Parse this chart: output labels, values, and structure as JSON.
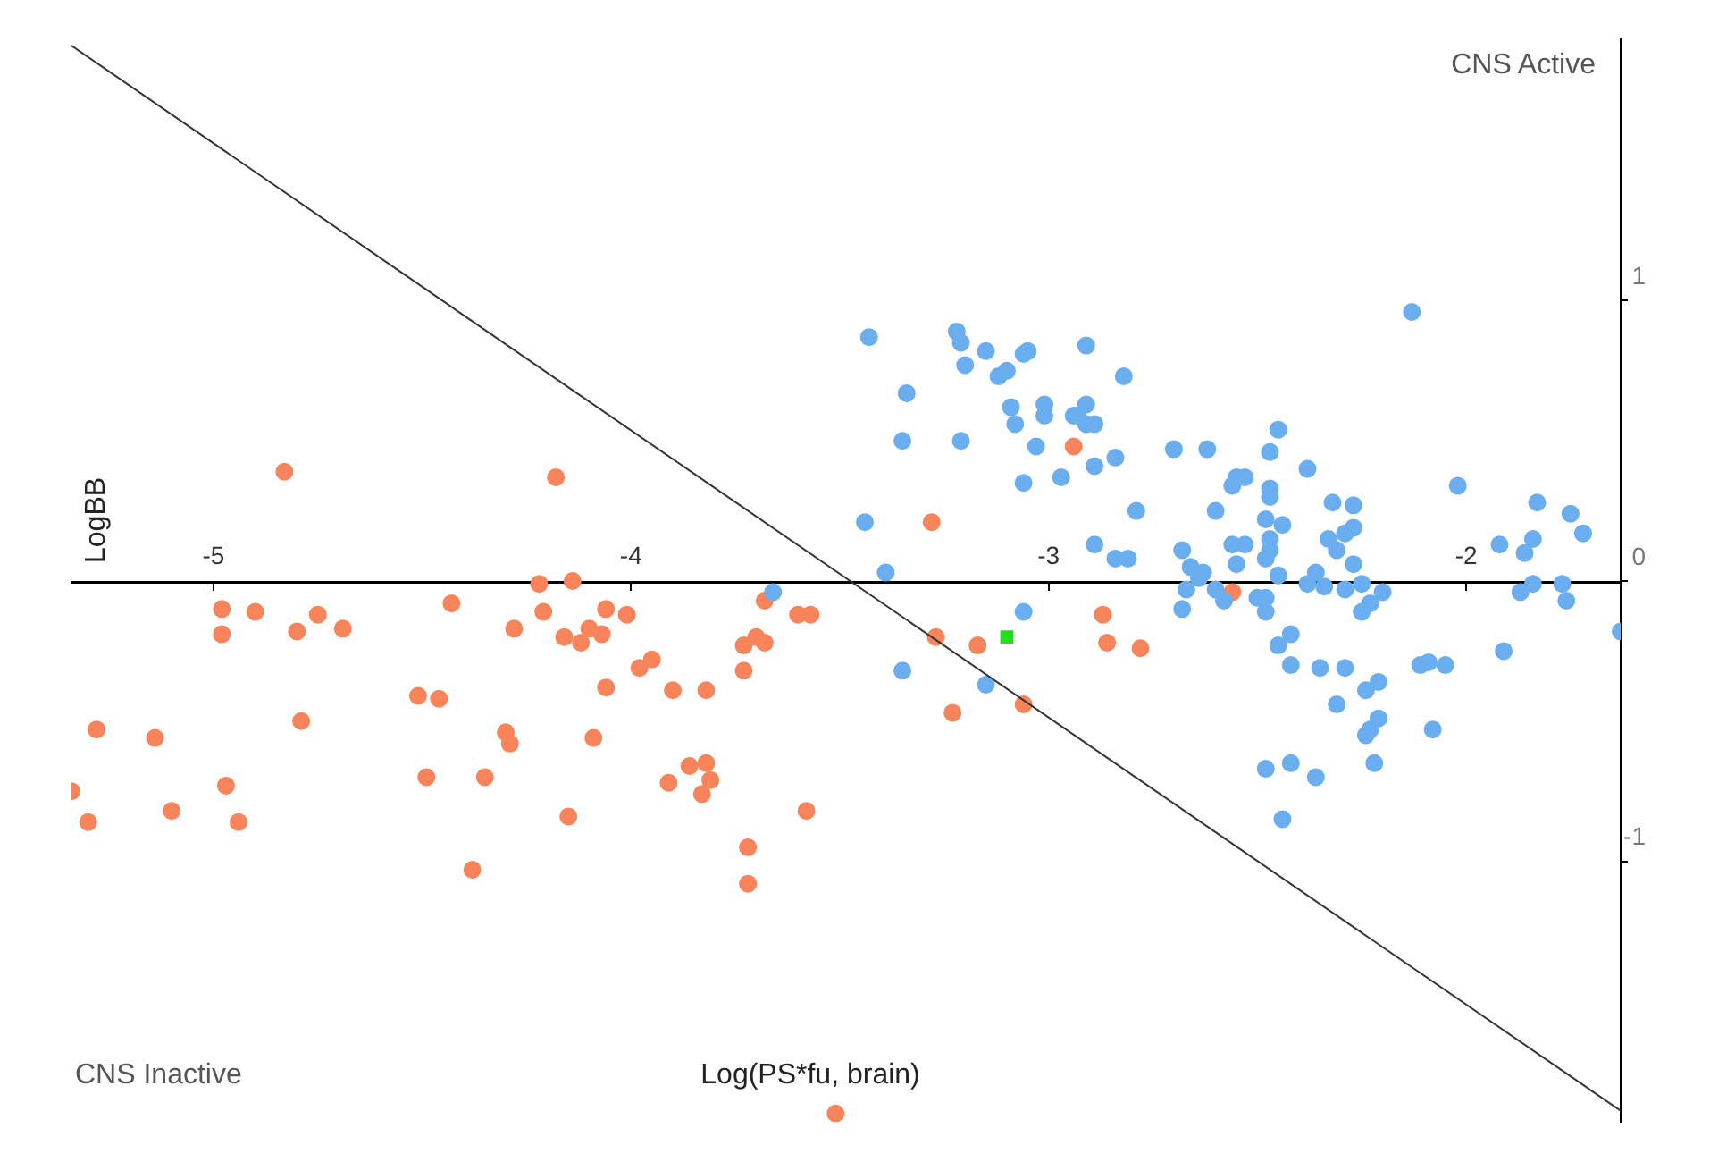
{
  "chart_data": {
    "type": "scatter",
    "xlabel": "Log(PS*fu, brain)",
    "ylabel": "LogBB",
    "annotations": [
      "CNS Active",
      "CNS Inactive"
    ],
    "xlim": [
      -5.34,
      -1.63
    ],
    "ylim": [
      -1.93,
      1.93
    ],
    "xticks": [
      -5,
      -4,
      -3,
      -2
    ],
    "yticks": [
      -1,
      0,
      1
    ],
    "legend": false,
    "marker": "circle",
    "series": [
      {
        "color": "#6aaef0",
        "x": [
          -3.43,
          -3.22,
          -3.21,
          -3.15,
          -3.2,
          -3.12,
          -3.1,
          -3.06,
          -3.05,
          -2.91,
          -2.82,
          -3.34,
          -3.35,
          -3.21,
          -3.09,
          -3.08,
          -3.01,
          -3.01,
          -2.94,
          -2.93,
          -2.91,
          -2.91,
          -2.89,
          -3.03,
          -3.06,
          -2.97,
          -2.89,
          -2.84,
          -2.7,
          -2.62,
          -2.45,
          -2.47,
          -2.38,
          -2.79,
          -2.6,
          -2.56,
          -2.55,
          -2.53,
          -2.47,
          -2.47,
          -2.48,
          -2.44,
          -2.47,
          -2.47,
          -2.48,
          -2.02,
          -2.13,
          -1.83,
          -1.75,
          -1.72,
          -1.92,
          -1.84,
          -1.86,
          -1.84,
          -1.77,
          -1.87,
          -1.76,
          -2.32,
          -2.27,
          -2.27,
          -2.29,
          -2.33,
          -2.31,
          -2.27,
          -2.25,
          -2.2,
          -2.29,
          -2.34,
          -2.36,
          -2.38,
          -2.45,
          -2.55,
          -2.56,
          -2.53,
          -2.68,
          -2.89,
          -2.84,
          -2.81,
          -2.66,
          -2.63,
          -2.64,
          -2.67,
          -2.6,
          -2.58,
          -2.68,
          -2.5,
          -2.48,
          -2.48,
          -2.25,
          -2.23,
          -3.39,
          -3.44,
          -3.66,
          -3.06,
          -3.35,
          -3.15,
          -2.42,
          -2.45,
          -2.42,
          -2.35,
          -2.29,
          -2.21,
          -2.24,
          -2.31,
          -2.21,
          -2.23,
          -2.24,
          -2.22,
          -2.48,
          -2.42,
          -2.36,
          -2.44,
          -2.11,
          -2.09,
          -2.05,
          -1.91,
          -2.08,
          -1.63
        ],
        "values": [
          0.87,
          0.89,
          0.85,
          0.82,
          0.77,
          0.73,
          0.75,
          0.81,
          0.82,
          0.84,
          0.73,
          0.67,
          0.5,
          0.5,
          0.62,
          0.56,
          0.63,
          0.59,
          0.59,
          0.59,
          0.63,
          0.56,
          0.56,
          0.48,
          0.35,
          0.37,
          0.41,
          0.44,
          0.47,
          0.47,
          0.54,
          0.46,
          0.4,
          0.25,
          0.25,
          0.34,
          0.37,
          0.37,
          0.33,
          0.3,
          0.22,
          0.2,
          0.15,
          0.11,
          0.08,
          0.34,
          0.96,
          0.28,
          0.24,
          0.17,
          0.13,
          0.15,
          0.1,
          -0.01,
          -0.01,
          -0.04,
          -0.07,
          0.28,
          0.27,
          0.19,
          0.17,
          0.15,
          0.11,
          0.06,
          -0.01,
          -0.04,
          -0.03,
          -0.02,
          0.03,
          -0.01,
          0.02,
          0.06,
          0.13,
          0.13,
          0.11,
          0.13,
          0.08,
          0.08,
          0.05,
          0.03,
          0.01,
          -0.03,
          -0.03,
          -0.07,
          -0.1,
          -0.06,
          -0.06,
          -0.11,
          -0.11,
          -0.08,
          0.03,
          0.21,
          -0.04,
          -0.11,
          -0.32,
          -0.37,
          -0.19,
          -0.23,
          -0.3,
          -0.31,
          -0.31,
          -0.36,
          -0.39,
          -0.44,
          -0.49,
          -0.53,
          -0.55,
          -0.65,
          -0.67,
          -0.65,
          -0.7,
          -0.85,
          -0.3,
          -0.29,
          -0.3,
          -0.25,
          -0.53,
          -0.18
        ]
      },
      {
        "color": "#f7845a",
        "x": [
          -4.83,
          -4.18,
          -4.22,
          -4.14,
          -4.98,
          -4.9,
          -4.98,
          -4.8,
          -4.75,
          -4.69,
          -4.43,
          -4.28,
          -4.21,
          -4.16,
          -4.12,
          -4.1,
          -4.07,
          -4.06,
          -4.01,
          -3.98,
          -3.95,
          -4.06,
          -3.9,
          -3.82,
          -3.73,
          -3.73,
          -3.7,
          -3.68,
          -3.68,
          -3.6,
          -3.57,
          -4.51,
          -4.46,
          -4.79,
          -5.28,
          -5.14,
          -4.3,
          -4.29,
          -4.09,
          -4.49,
          -4.35,
          -3.91,
          -3.86,
          -3.82,
          -3.81,
          -3.83,
          -5.34,
          -5.3,
          -5.1,
          -4.97,
          -4.94,
          -4.15,
          -3.58,
          -3.72,
          -3.72,
          -4.38,
          -3.51,
          -2.94,
          -3.28,
          -2.87,
          -3.27,
          -3.17,
          -2.86,
          -2.78,
          -3.23,
          -3.06,
          -2.56
        ],
        "values": [
          0.39,
          0.37,
          -0.01,
          0.0,
          -0.1,
          -0.11,
          -0.19,
          -0.18,
          -0.12,
          -0.17,
          -0.08,
          -0.17,
          -0.11,
          -0.2,
          -0.22,
          -0.17,
          -0.19,
          -0.1,
          -0.12,
          -0.31,
          -0.28,
          -0.38,
          -0.39,
          -0.39,
          -0.23,
          -0.32,
          -0.2,
          -0.22,
          -0.07,
          -0.12,
          -0.12,
          -0.41,
          -0.42,
          -0.5,
          -0.53,
          -0.56,
          -0.54,
          -0.58,
          -0.56,
          -0.7,
          -0.7,
          -0.72,
          -0.66,
          -0.65,
          -0.71,
          -0.76,
          -0.75,
          -0.86,
          -0.82,
          -0.73,
          -0.86,
          -0.84,
          -0.82,
          -0.95,
          -1.08,
          -1.03,
          -1.9,
          0.48,
          0.21,
          -0.12,
          -0.2,
          -0.23,
          -0.22,
          -0.24,
          -0.47,
          -0.44,
          -0.04
        ]
      },
      {
        "color": "#22dd22",
        "marker": "square",
        "x": [
          -3.1
        ],
        "values": [
          -0.2
        ]
      },
      {
        "type": "line",
        "color": "#333333",
        "marker": "none",
        "x": [
          -5.34,
          -1.63
        ],
        "values": [
          1.91,
          -1.89
        ]
      }
    ]
  }
}
